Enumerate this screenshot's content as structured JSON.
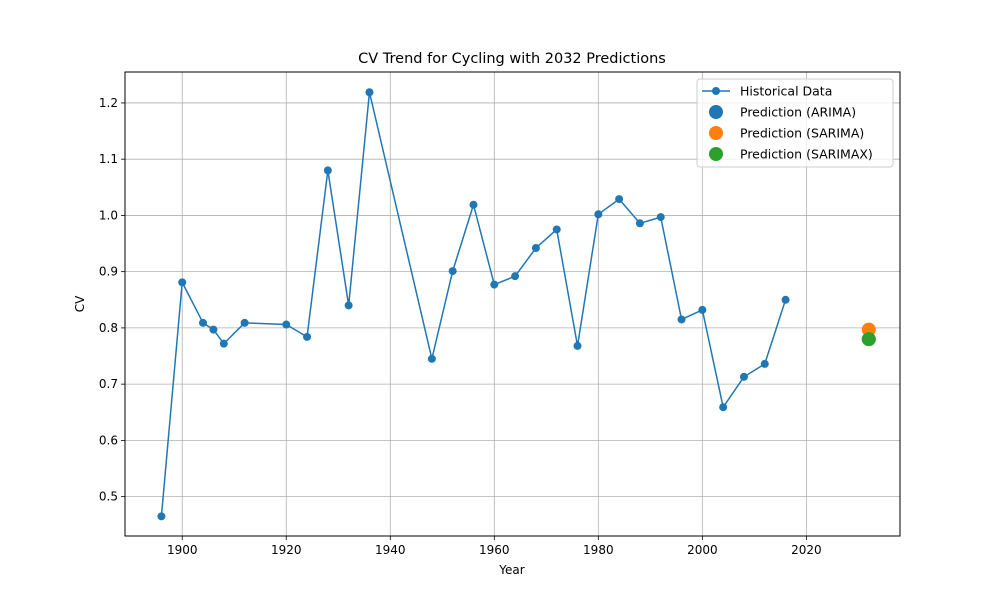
{
  "chart_data": {
    "type": "line",
    "title": "CV Trend for Cycling with 2032 Predictions",
    "xlabel": "Year",
    "ylabel": "CV",
    "xlim": [
      1889,
      2038
    ],
    "ylim": [
      0.43,
      1.255
    ],
    "xticks": [
      1900,
      1920,
      1940,
      1960,
      1980,
      2000,
      2020
    ],
    "yticks": [
      0.5,
      0.6,
      0.7,
      0.8,
      0.9,
      1.0,
      1.1,
      1.2
    ],
    "ytick_labels": [
      "0.5",
      "0.6",
      "0.7",
      "0.8",
      "0.9",
      "1.0",
      "1.1",
      "1.2"
    ],
    "grid": true,
    "legend_position": "top-right",
    "colors": {
      "historical": "#1f77b4",
      "arima": "#1f77b4",
      "sarima": "#ff7f0e",
      "sarimax": "#2ca02c"
    },
    "series": [
      {
        "name": "Historical Data",
        "style": "line-marker",
        "x": [
          1896,
          1900,
          1904,
          1906,
          1908,
          1912,
          1920,
          1924,
          1928,
          1932,
          1936,
          1948,
          1952,
          1956,
          1960,
          1964,
          1968,
          1972,
          1976,
          1980,
          1984,
          1988,
          1992,
          1996,
          2000,
          2004,
          2008,
          2012,
          2016
        ],
        "y": [
          0.465,
          0.881,
          0.809,
          0.797,
          0.772,
          0.809,
          0.806,
          0.784,
          1.08,
          0.84,
          1.219,
          0.745,
          0.901,
          1.019,
          0.877,
          0.892,
          0.942,
          0.975,
          0.768,
          1.002,
          1.029,
          0.986,
          0.997,
          0.815,
          0.832,
          0.659,
          0.713,
          0.736,
          0.85
        ]
      },
      {
        "name": "Prediction (ARIMA)",
        "style": "point",
        "x": [
          2032
        ],
        "y": [
          0.78
        ]
      },
      {
        "name": "Prediction (SARIMA)",
        "style": "point",
        "x": [
          2032
        ],
        "y": [
          0.797
        ]
      },
      {
        "name": "Prediction (SARIMAX)",
        "style": "point",
        "x": [
          2032
        ],
        "y": [
          0.78
        ]
      }
    ]
  }
}
